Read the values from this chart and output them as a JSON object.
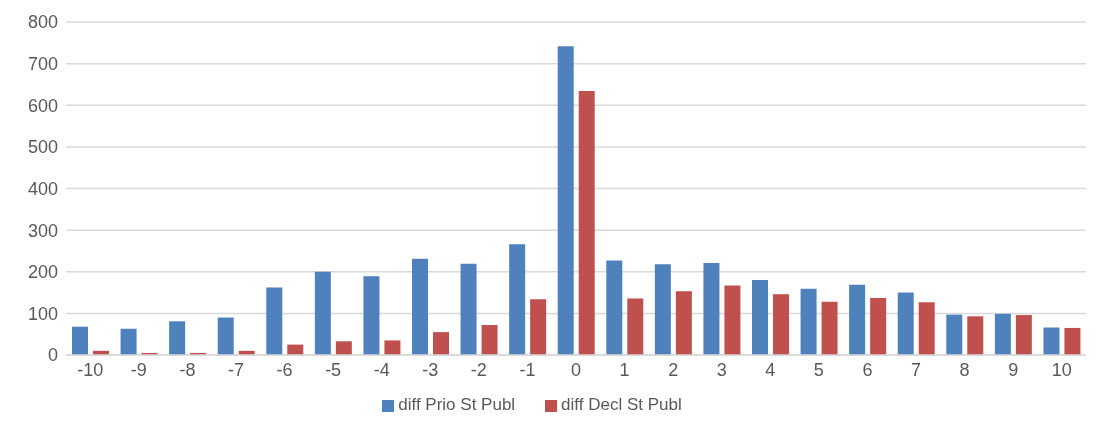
{
  "chart_data": {
    "type": "bar",
    "categories": [
      "-10",
      "-9",
      "-8",
      "-7",
      "-6",
      "-5",
      "-4",
      "-3",
      "-2",
      "-1",
      "0",
      "1",
      "2",
      "3",
      "4",
      "5",
      "6",
      "7",
      "8",
      "9",
      "10"
    ],
    "series": [
      {
        "name": "diff Prio St Publ",
        "color": "#4f81bd",
        "values": [
          68,
          63,
          81,
          90,
          162,
          200,
          189,
          231,
          219,
          266,
          742,
          227,
          218,
          221,
          180,
          159,
          169,
          150,
          97,
          99,
          66
        ]
      },
      {
        "name": "diff Decl St Publ",
        "color": "#c0504d",
        "values": [
          10,
          5,
          5,
          10,
          25,
          33,
          35,
          55,
          72,
          134,
          634,
          136,
          153,
          167,
          146,
          128,
          137,
          127,
          93,
          96,
          65
        ]
      }
    ],
    "ylim": [
      0,
      800
    ],
    "yticks": [
      0,
      100,
      200,
      300,
      400,
      500,
      600,
      700,
      800
    ],
    "grid": "y",
    "legend": "bottom"
  }
}
